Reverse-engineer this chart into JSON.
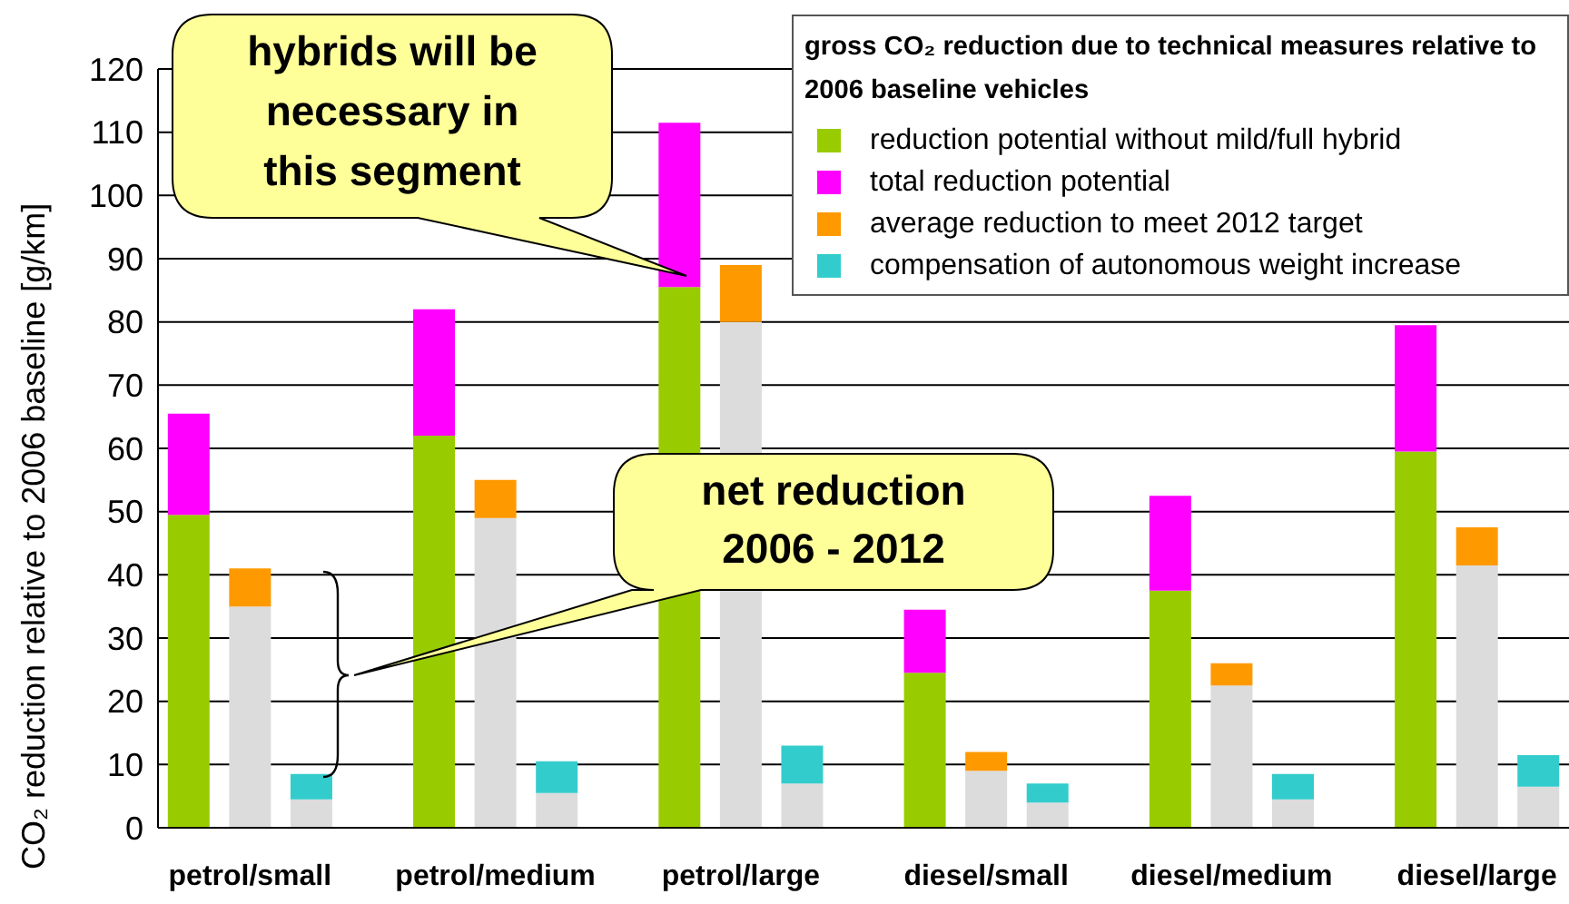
{
  "chart_data": {
    "type": "bar",
    "stacked": true,
    "ylabel": "CO₂ reduction relative to 2006 baseline [g/km]",
    "legend_title": "gross CO₂ reduction due to technical measures relative to 2006 baseline vehicles",
    "categories": [
      null,
      "petrol/small",
      null,
      null,
      null,
      "petrol/medium",
      null,
      null,
      null,
      "petrol/large",
      null,
      null,
      null,
      "diesel/small",
      null,
      null,
      null,
      "diesel/medium",
      null,
      null,
      null,
      "diesel/large",
      null
    ],
    "series": [
      {
        "name": "reduction potential without mild/full hybrid",
        "color": "#99cc00",
        "values": [
          49.5,
          null,
          null,
          null,
          62,
          null,
          null,
          null,
          85.5,
          null,
          null,
          null,
          24.5,
          null,
          null,
          null,
          37.5,
          null,
          null,
          null,
          59.5,
          null,
          null
        ]
      },
      {
        "color": "#dcdcdc",
        "values": [
          null,
          35,
          4.5,
          null,
          null,
          49,
          5.5,
          null,
          null,
          80,
          7,
          null,
          null,
          9,
          4,
          null,
          null,
          22.5,
          4.5,
          null,
          null,
          41.5,
          6.5
        ]
      },
      {
        "name": "total reduction potential",
        "color": "#ff00ff",
        "values": [
          16,
          null,
          null,
          null,
          20,
          null,
          null,
          null,
          26,
          null,
          null,
          null,
          10,
          null,
          null,
          null,
          15,
          null,
          null,
          null,
          20,
          null,
          null
        ]
      },
      {
        "name": "average reduction to meet 2012 target",
        "color": "#ff9900",
        "values": [
          null,
          6,
          null,
          null,
          null,
          6,
          null,
          null,
          null,
          9,
          null,
          null,
          null,
          3,
          null,
          null,
          null,
          3.5,
          null,
          null,
          null,
          6,
          null
        ]
      },
      {
        "name": "compensation of autonomous weight increase",
        "color": "#33cccc",
        "values": [
          null,
          null,
          4,
          null,
          null,
          null,
          5,
          null,
          null,
          null,
          6,
          null,
          null,
          null,
          3,
          null,
          null,
          null,
          4,
          null,
          null,
          null,
          5
        ]
      }
    ],
    "ylim": [
      0,
      120
    ],
    "yticks": [
      0,
      10,
      20,
      30,
      40,
      50,
      60,
      70,
      80,
      90,
      100,
      110,
      120
    ],
    "grid": "y",
    "legend": "top right",
    "annotations": [
      "hybrids will be necessary in this segment",
      "net reduction 2006 - 2012"
    ]
  }
}
